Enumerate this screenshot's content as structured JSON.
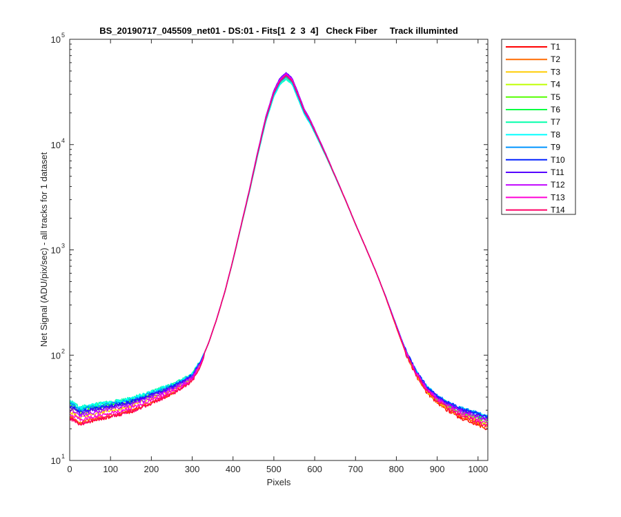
{
  "chart_data": {
    "type": "line",
    "title": "BS_20190717_045509_net01 - DS:01 - Fits[1  2  3  4]   Check Fiber     Track illuminted",
    "xlabel": "Pixels",
    "ylabel": "Net Signal (ADU/pix/sec) - all tracks for 1 dataset",
    "xlim": [
      0,
      1024
    ],
    "ylim": [
      10,
      100000
    ],
    "yscale": "log",
    "x_ticks": [
      0,
      100,
      200,
      300,
      400,
      500,
      600,
      700,
      800,
      900,
      1000
    ],
    "x_tick_labels": [
      "0",
      "100",
      "200",
      "300",
      "400",
      "500",
      "600",
      "700",
      "800",
      "900",
      "1000"
    ],
    "y_ticks": [
      10,
      100,
      1000,
      10000,
      100000
    ],
    "y_tick_bases": [
      "10",
      "10",
      "10",
      "10",
      "10"
    ],
    "y_tick_exponents": [
      "1",
      "2",
      "3",
      "4",
      "5"
    ],
    "grid": false,
    "legend_position": "outside-top-right",
    "profile_x": [
      0,
      10,
      25,
      40,
      60,
      100,
      150,
      200,
      250,
      280,
      300,
      320,
      340,
      360,
      380,
      400,
      420,
      440,
      460,
      480,
      500,
      515,
      530,
      545,
      560,
      575,
      590,
      610,
      630,
      650,
      675,
      700,
      725,
      750,
      775,
      800,
      825,
      850,
      875,
      900,
      925,
      950,
      975,
      1000,
      1024
    ],
    "profile_y": [
      33,
      32,
      29,
      30,
      31,
      33,
      36,
      42,
      50,
      57,
      64,
      85,
      130,
      220,
      400,
      800,
      1700,
      3600,
      8000,
      17000,
      30000,
      39000,
      44000,
      39000,
      28000,
      20000,
      16000,
      11000,
      7500,
      5000,
      3000,
      1750,
      1050,
      620,
      350,
      190,
      105,
      68,
      49,
      40,
      35,
      31,
      29,
      27,
      25
    ],
    "series": [
      {
        "name": "T1",
        "color": "#ff0000",
        "peak_scale": 1.02,
        "low_shift": 0.8,
        "tail_end": 0.8
      },
      {
        "name": "T2",
        "color": "#ff6a00",
        "peak_scale": 1.0,
        "low_shift": 0.82,
        "tail_end": 0.82
      },
      {
        "name": "T3",
        "color": "#ffcc00",
        "peak_scale": 0.98,
        "low_shift": 0.9,
        "tail_end": 0.86
      },
      {
        "name": "T4",
        "color": "#bfff00",
        "peak_scale": 0.97,
        "low_shift": 0.97,
        "tail_end": 0.9
      },
      {
        "name": "T5",
        "color": "#55ff00",
        "peak_scale": 0.96,
        "low_shift": 1.02,
        "tail_end": 0.94
      },
      {
        "name": "T6",
        "color": "#00ff40",
        "peak_scale": 0.96,
        "low_shift": 1.05,
        "tail_end": 0.98
      },
      {
        "name": "T7",
        "color": "#00ffaa",
        "peak_scale": 0.95,
        "low_shift": 1.08,
        "tail_end": 1.02
      },
      {
        "name": "T8",
        "color": "#00ffff",
        "peak_scale": 0.96,
        "low_shift": 1.07,
        "tail_end": 1.04
      },
      {
        "name": "T9",
        "color": "#0095ff",
        "peak_scale": 1.0,
        "low_shift": 1.04,
        "tail_end": 1.04
      },
      {
        "name": "T10",
        "color": "#0020ff",
        "peak_scale": 1.06,
        "low_shift": 1.0,
        "tail_end": 1.03
      },
      {
        "name": "T11",
        "color": "#5500ff",
        "peak_scale": 1.1,
        "low_shift": 0.98,
        "tail_end": 1.0
      },
      {
        "name": "T12",
        "color": "#c000ff",
        "peak_scale": 1.08,
        "low_shift": 0.93,
        "tail_end": 0.96
      },
      {
        "name": "T13",
        "color": "#ff00d5",
        "peak_scale": 1.05,
        "low_shift": 0.86,
        "tail_end": 0.9
      },
      {
        "name": "T14",
        "color": "#ff0066",
        "peak_scale": 1.03,
        "low_shift": 0.8,
        "tail_end": 0.85
      }
    ]
  }
}
